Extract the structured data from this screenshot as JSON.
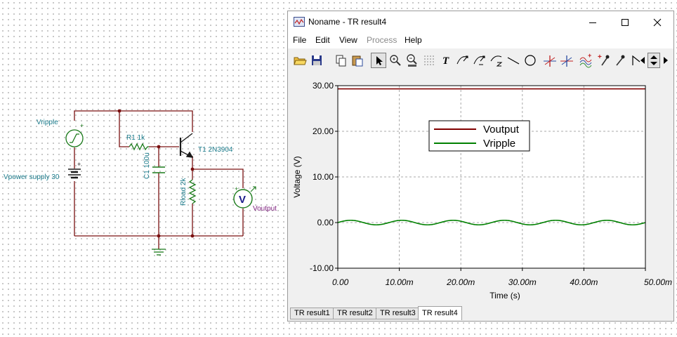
{
  "schematic": {
    "vripple_label": "Vripple",
    "vpower_label": "Vpower supply 30",
    "r1_label": "R1 1k",
    "c1_label": "C1 100u",
    "t1_label": "T1 2N3904",
    "rload_label": "Rload 2k",
    "voutput_label": "Voutput",
    "voltmeter_symbol": "V",
    "plus_sign": "+"
  },
  "window": {
    "title": "Noname - TR result4",
    "controls": [
      "minimize-icon",
      "maximize-icon",
      "close-icon"
    ]
  },
  "menu": {
    "file": "File",
    "edit": "Edit",
    "view": "View",
    "process": "Process",
    "help": "Help"
  },
  "toolbar": {
    "icons": [
      "open-folder-icon",
      "save-icon",
      "copy-icon",
      "paste-icon",
      "pointer-icon",
      "zoom-in-icon",
      "zoom-100-icon",
      "grid-icon",
      "text-icon",
      "curve-label-icon",
      "curve-label2-icon",
      "curve-z-icon",
      "line-icon",
      "circle-icon",
      "cursor-a-icon",
      "cursor-b-icon",
      "waveform-icon",
      "marker-icon",
      "marker2-icon",
      "flag-icon",
      "scroll-left-icon",
      "scroll-updown-icon",
      "scroll-right-icon"
    ],
    "text_tool_glyph": "T"
  },
  "chart_data": {
    "type": "line",
    "title": "",
    "xlabel": "Time (s)",
    "ylabel": "Voltage (V)",
    "xlim": [
      0,
      0.05
    ],
    "ylim": [
      -10,
      30
    ],
    "x_ticks": [
      "0.00",
      "10.00m",
      "20.00m",
      "30.00m",
      "40.00m",
      "50.00m"
    ],
    "y_ticks": [
      "30.00",
      "20.00",
      "10.00",
      "0.00",
      "-10.00"
    ],
    "grid": true,
    "legend": "top-center",
    "series": [
      {
        "name": "Voutput",
        "color": "#800000",
        "kind": "constant",
        "value": 29.3
      },
      {
        "name": "Vripple",
        "color": "#008000",
        "kind": "sine",
        "offset": 0,
        "amplitude": 0.5,
        "frequency_hz": 120,
        "sample_step": 0.0001
      }
    ]
  },
  "tabs": [
    {
      "label": "TR result1",
      "active": false
    },
    {
      "label": "TR result2",
      "active": false
    },
    {
      "label": "TR result3",
      "active": false
    },
    {
      "label": "TR result4",
      "active": true
    }
  ]
}
